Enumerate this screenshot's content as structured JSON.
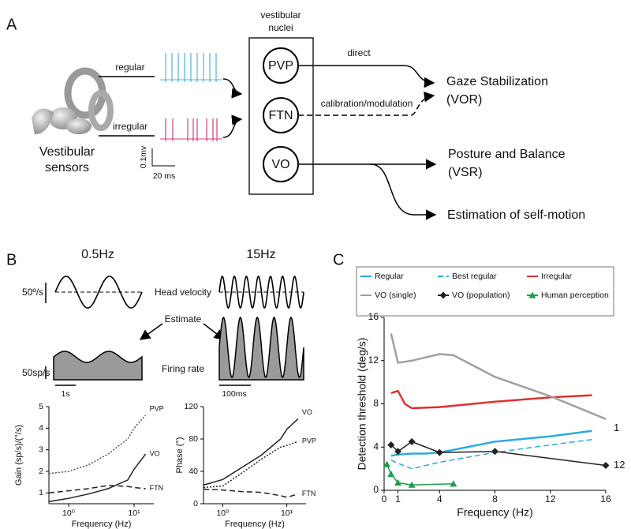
{
  "panel_a": {
    "label": "A",
    "nuclei_title": [
      "vestibular",
      "nuclei"
    ],
    "regular": "regular",
    "irregular": "irregular",
    "sensors": [
      "Vestibular",
      "sensors"
    ],
    "scale_v": "0.1mv",
    "scale_t": "20 ms",
    "nuclei": [
      "PVP",
      "FTN",
      "VO"
    ],
    "direct": "direct",
    "calibration": "calibration/modulation",
    "gaze": [
      "Gaze Stabilization",
      "(VOR)"
    ],
    "posture": [
      "Posture and Balance",
      "(VSR)"
    ],
    "estimation": "Estimation of self-motion"
  },
  "panel_b": {
    "label": "B",
    "low_freq": "0.5Hz",
    "high_freq": "15Hz",
    "velocity_scale": "50º/s",
    "head_velocity": "Head velocity",
    "estimate": "Estimate",
    "rate_scale": "50sp/s",
    "firing_rate": "Firing rate",
    "time_low": "1s",
    "time_high": "100ms"
  },
  "panel_c": {
    "label": "C"
  },
  "chart_data": [
    {
      "type": "line",
      "ylabel": "Gain (sp/s)/(°/s)",
      "xlabel": "Frequency (Hz)",
      "xscale": "log",
      "xlim": [
        0.5,
        20
      ],
      "xticks": [
        {
          "value": 1,
          "label": "10⁰"
        },
        {
          "value": 10,
          "label": "10¹"
        }
      ],
      "ylim": [
        0.5,
        5
      ],
      "yticks": [
        1,
        2,
        3,
        4,
        5
      ],
      "direct_labels": true,
      "x": [
        0.5,
        1,
        2,
        4,
        8,
        10,
        15
      ],
      "series": [
        {
          "name": "PVP",
          "color": "#555555",
          "dash": "dotted",
          "values": [
            1.9,
            2.0,
            2.3,
            2.8,
            3.5,
            4.0,
            4.6
          ]
        },
        {
          "name": "VO",
          "color": "#222222",
          "dash": "solid",
          "values": [
            0.6,
            0.75,
            0.95,
            1.2,
            1.6,
            2.1,
            2.8
          ]
        },
        {
          "name": "FTN",
          "color": "#222222",
          "dash": "dashed",
          "values": [
            1.0,
            1.1,
            1.2,
            1.35,
            1.3,
            1.25,
            1.2
          ]
        }
      ]
    },
    {
      "type": "line",
      "ylabel": "Phase (°)",
      "xlabel": "Frequency (Hz)",
      "xscale": "log",
      "xlim": [
        0.5,
        20
      ],
      "xticks": [
        {
          "value": 1,
          "label": "10⁰"
        },
        {
          "value": 10,
          "label": "10¹"
        }
      ],
      "ylim": [
        0,
        120
      ],
      "yticks": [
        0,
        40,
        80,
        120
      ],
      "direct_labels": true,
      "x": [
        0.5,
        1,
        2,
        4,
        8,
        10,
        15
      ],
      "series": [
        {
          "name": "VO",
          "color": "#222222",
          "dash": "solid",
          "values": [
            23,
            30,
            45,
            60,
            80,
            92,
            105
          ]
        },
        {
          "name": "PVP",
          "color": "#222222",
          "dash": "dotted",
          "values": [
            20,
            22,
            38,
            55,
            70,
            72,
            77
          ]
        },
        {
          "name": "FTN",
          "color": "#222222",
          "dash": "dashed",
          "values": [
            18,
            17,
            15,
            14,
            10,
            8,
            12
          ]
        }
      ]
    },
    {
      "type": "line",
      "ylabel": "Detection threshold (deg/s)",
      "xlabel": "Frequency (Hz)",
      "xscale": "linear",
      "xlim": [
        0,
        16
      ],
      "xticks": [
        0,
        1,
        4,
        8,
        12,
        16
      ],
      "ylim": [
        0,
        16
      ],
      "yticks": [
        0,
        4,
        8,
        12,
        16
      ],
      "legend": "top",
      "annotations": [
        "1",
        "12"
      ],
      "series": [
        {
          "name": "Regular",
          "color": "#29abe2",
          "dash": "solid",
          "width": 2.5,
          "x": [
            0.5,
            1,
            2,
            3,
            4,
            6,
            8,
            12,
            15
          ],
          "values": [
            3.2,
            3.3,
            3.4,
            3.4,
            3.5,
            4.0,
            4.5,
            5.0,
            5.5
          ]
        },
        {
          "name": "Best regular",
          "color": "#29abe2",
          "dash": "dashed",
          "width": 1.5,
          "x": [
            0.5,
            1,
            2,
            4,
            8,
            12,
            15
          ],
          "values": [
            2.8,
            2.5,
            2.0,
            2.6,
            3.5,
            4.2,
            4.7
          ]
        },
        {
          "name": "Irregular",
          "color": "#e03030",
          "dash": "solid",
          "width": 2.5,
          "x": [
            0.5,
            1,
            1.5,
            2,
            4,
            8,
            12,
            15
          ],
          "values": [
            9.0,
            9.2,
            8.0,
            7.6,
            7.7,
            8.2,
            8.6,
            8.8
          ]
        },
        {
          "name": "VO (single)",
          "color": "#a0a0a0",
          "dash": "solid",
          "width": 2.5,
          "x": [
            0.5,
            1,
            2,
            4,
            5,
            8,
            12,
            16
          ],
          "values": [
            14.5,
            11.8,
            12.0,
            12.6,
            12.5,
            10.5,
            8.7,
            6.6
          ]
        },
        {
          "name": "VO (population)",
          "color": "#222222",
          "dash": "solid",
          "width": 1.5,
          "marker": "diamond",
          "x": [
            0.5,
            1,
            2,
            4,
            8,
            16
          ],
          "values": [
            4.2,
            3.6,
            4.5,
            3.5,
            3.6,
            2.3
          ]
        },
        {
          "name": "Human perception",
          "color": "#1aa04a",
          "dash": "solid",
          "width": 1.5,
          "marker": "triangle",
          "x": [
            0.2,
            0.5,
            1,
            2,
            5
          ],
          "values": [
            2.4,
            1.5,
            0.7,
            0.5,
            0.6
          ]
        }
      ]
    }
  ]
}
